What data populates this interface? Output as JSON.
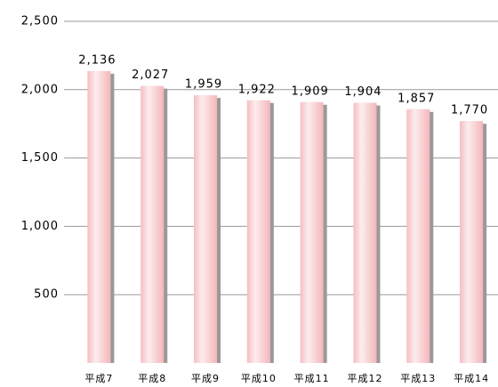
{
  "chart_data": {
    "type": "bar",
    "categories": [
      "平成7",
      "平成8",
      "平成9",
      "平成10",
      "平成11",
      "平成12",
      "平成13",
      "平成14"
    ],
    "values": [
      2136,
      2027,
      1959,
      1922,
      1909,
      1904,
      1857,
      1770
    ],
    "value_labels": [
      "2,136",
      "2,027",
      "1,959",
      "1,922",
      "1,909",
      "1,904",
      "1,857",
      "1,770"
    ],
    "color": "#f4b6ba",
    "ylim": [
      0,
      2500
    ],
    "yticks": [
      {
        "value": 500,
        "label": "500"
      },
      {
        "value": 1000,
        "label": "1,000"
      },
      {
        "value": 1500,
        "label": "1,500"
      },
      {
        "value": 2000,
        "label": "2,000"
      },
      {
        "value": 2500,
        "label": "2,500"
      }
    ],
    "grid": true
  }
}
